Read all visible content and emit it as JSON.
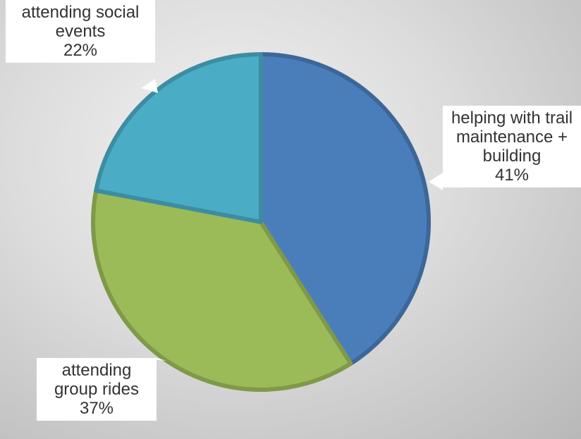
{
  "chart_data": {
    "type": "pie",
    "categories": [
      "helping with trail maintenance + building",
      "attending group rides",
      "attending social events"
    ],
    "values": [
      41,
      37,
      22
    ],
    "value_labels": [
      "41%",
      "37%",
      "22%"
    ],
    "colors": [
      "#4a7ebb",
      "#9bbb59",
      "#4bacc6"
    ]
  }
}
